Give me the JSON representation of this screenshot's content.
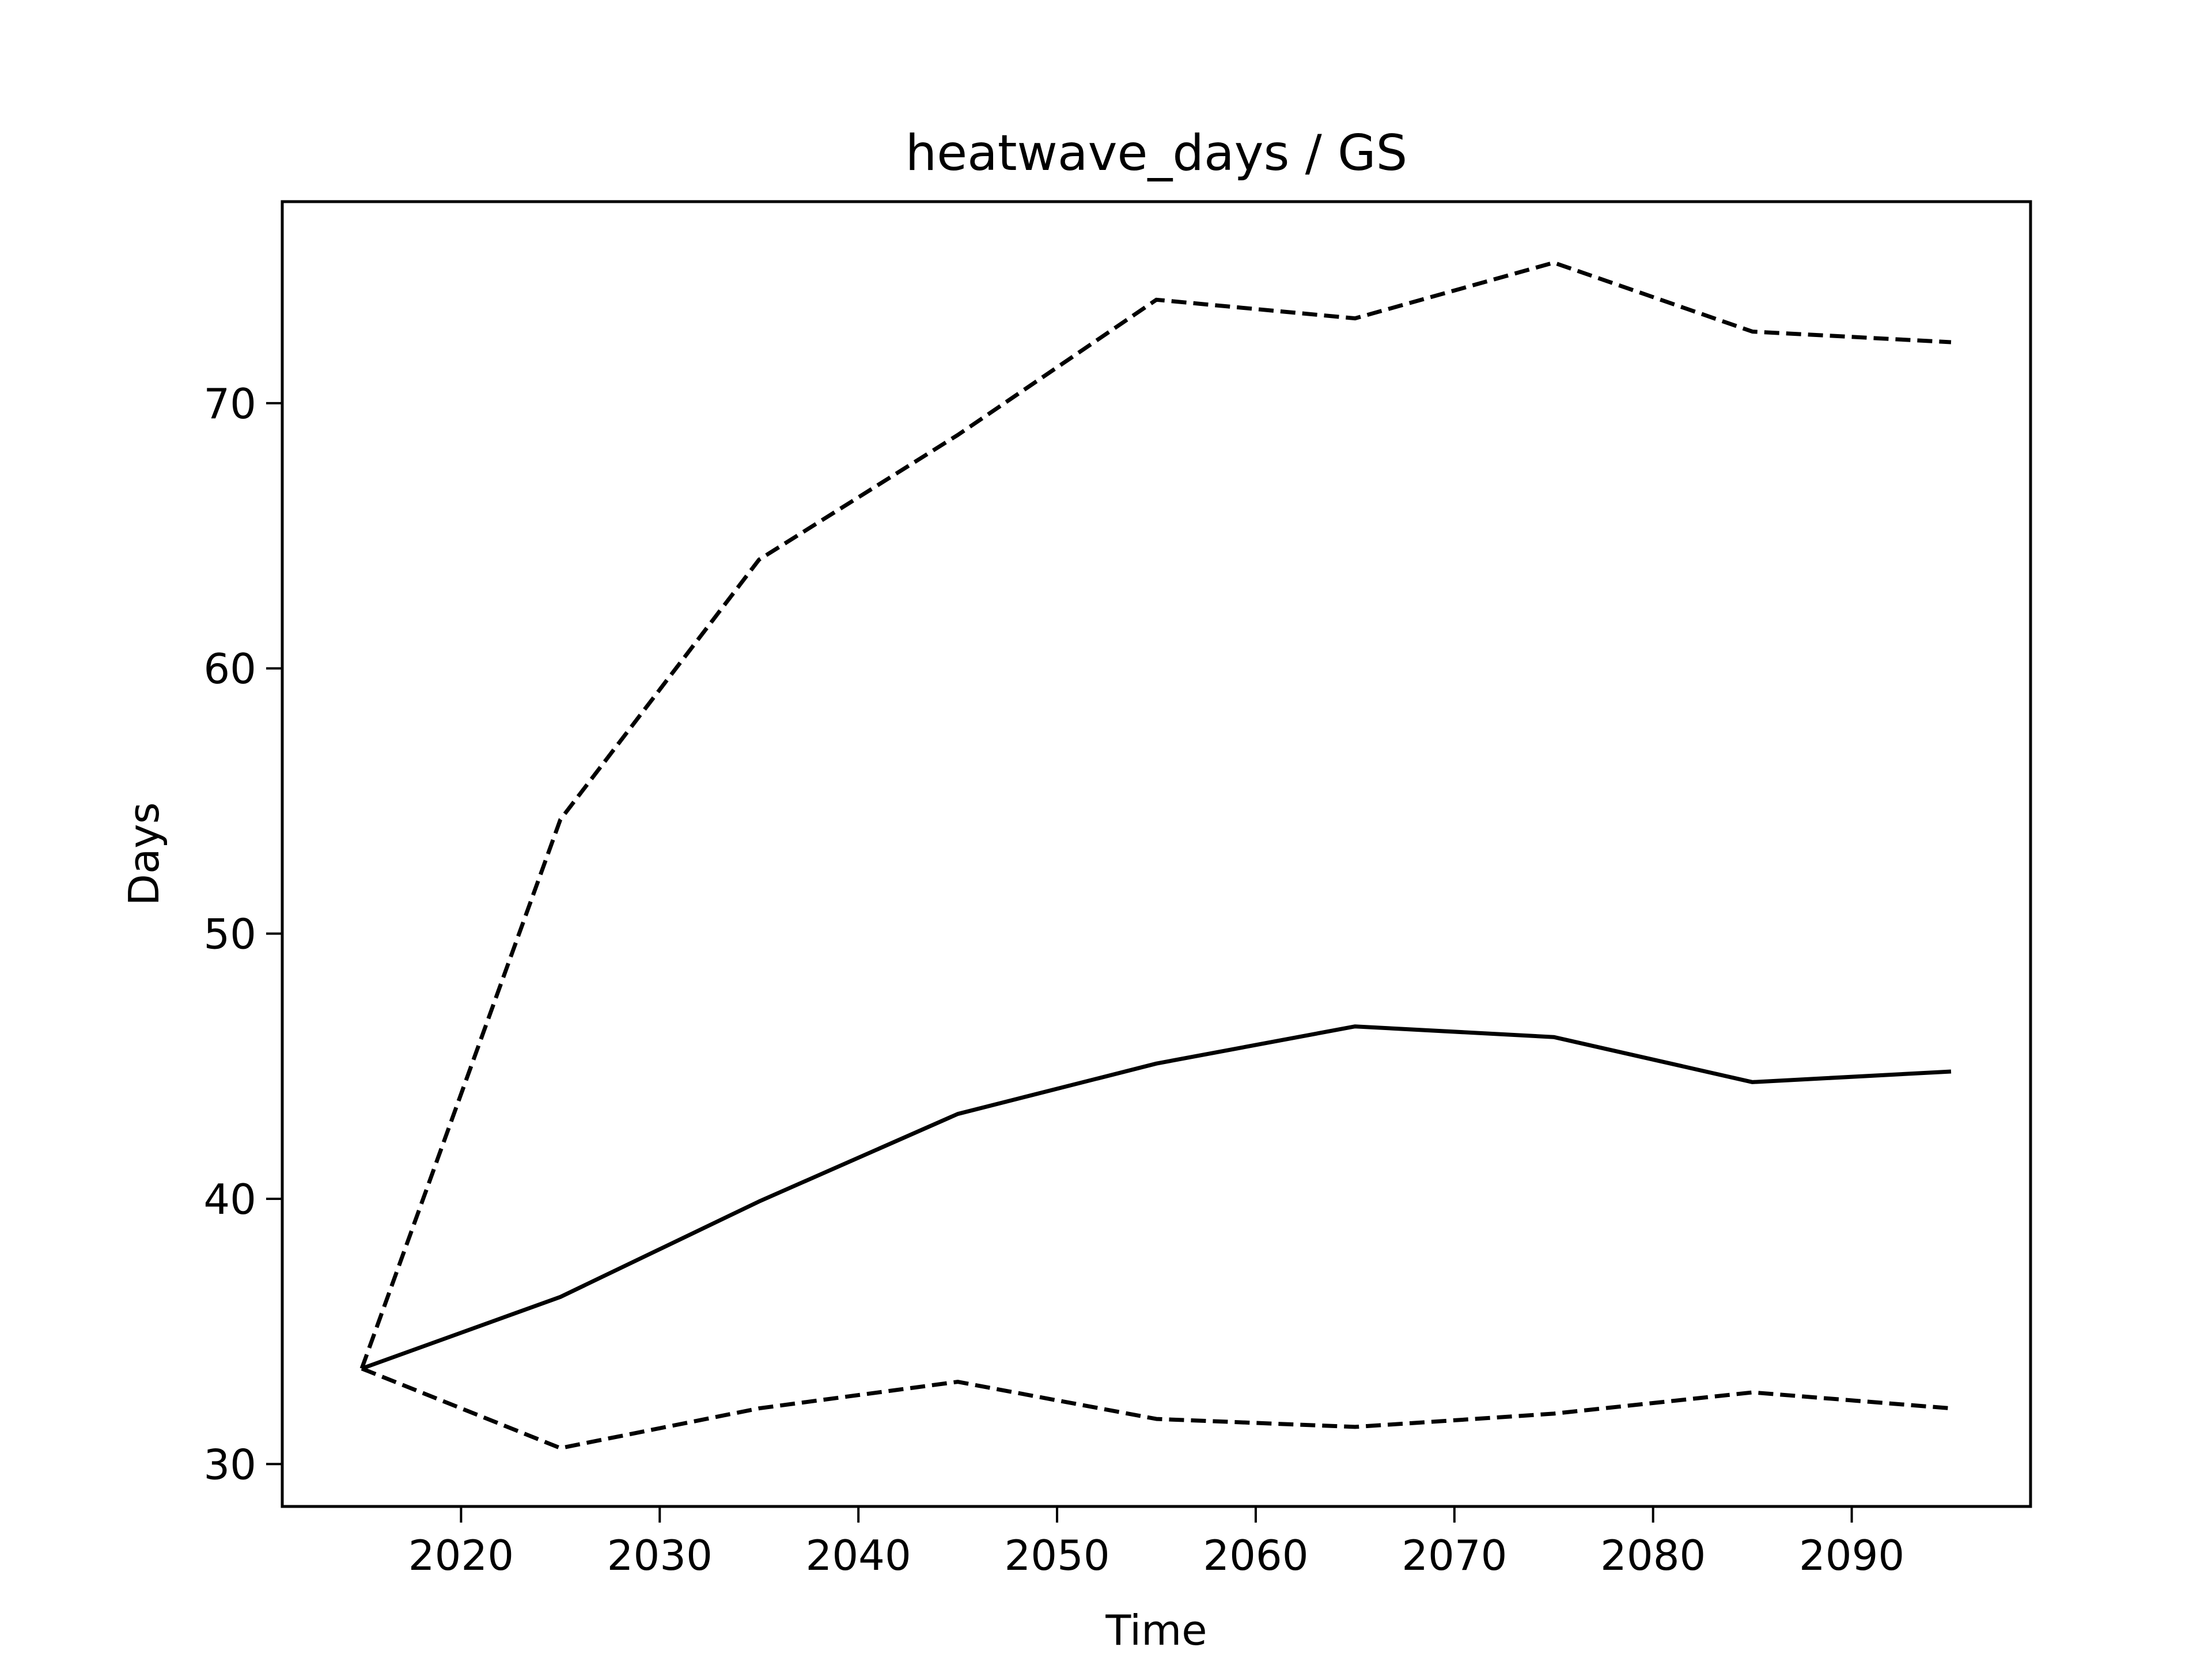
{
  "chart_data": {
    "type": "line",
    "title": "heatwave_days / GS",
    "xlabel": "Time",
    "ylabel": "Days",
    "x": [
      2015,
      2025,
      2035,
      2045,
      2055,
      2065,
      2075,
      2085,
      2095
    ],
    "xlim": [
      2011,
      2099
    ],
    "ylim": [
      28.4,
      77.6
    ],
    "xticks": [
      2020,
      2030,
      2040,
      2050,
      2060,
      2070,
      2080,
      2090
    ],
    "yticks": [
      30,
      40,
      50,
      60,
      70
    ],
    "grid": false,
    "legend": "none",
    "series": [
      {
        "style": "solid",
        "color": "#000000",
        "values": [
          33.6,
          36.3,
          39.9,
          43.2,
          45.1,
          46.5,
          46.1,
          44.4,
          44.8
        ]
      },
      {
        "style": "dashed",
        "color": "#000000",
        "values": [
          33.6,
          54.3,
          64.1,
          68.8,
          73.9,
          73.2,
          75.3,
          72.7,
          72.3
        ]
      },
      {
        "style": "dashed",
        "color": "#000000",
        "values": [
          33.6,
          30.6,
          32.1,
          33.1,
          31.7,
          31.4,
          31.9,
          32.7,
          32.1
        ]
      }
    ]
  }
}
